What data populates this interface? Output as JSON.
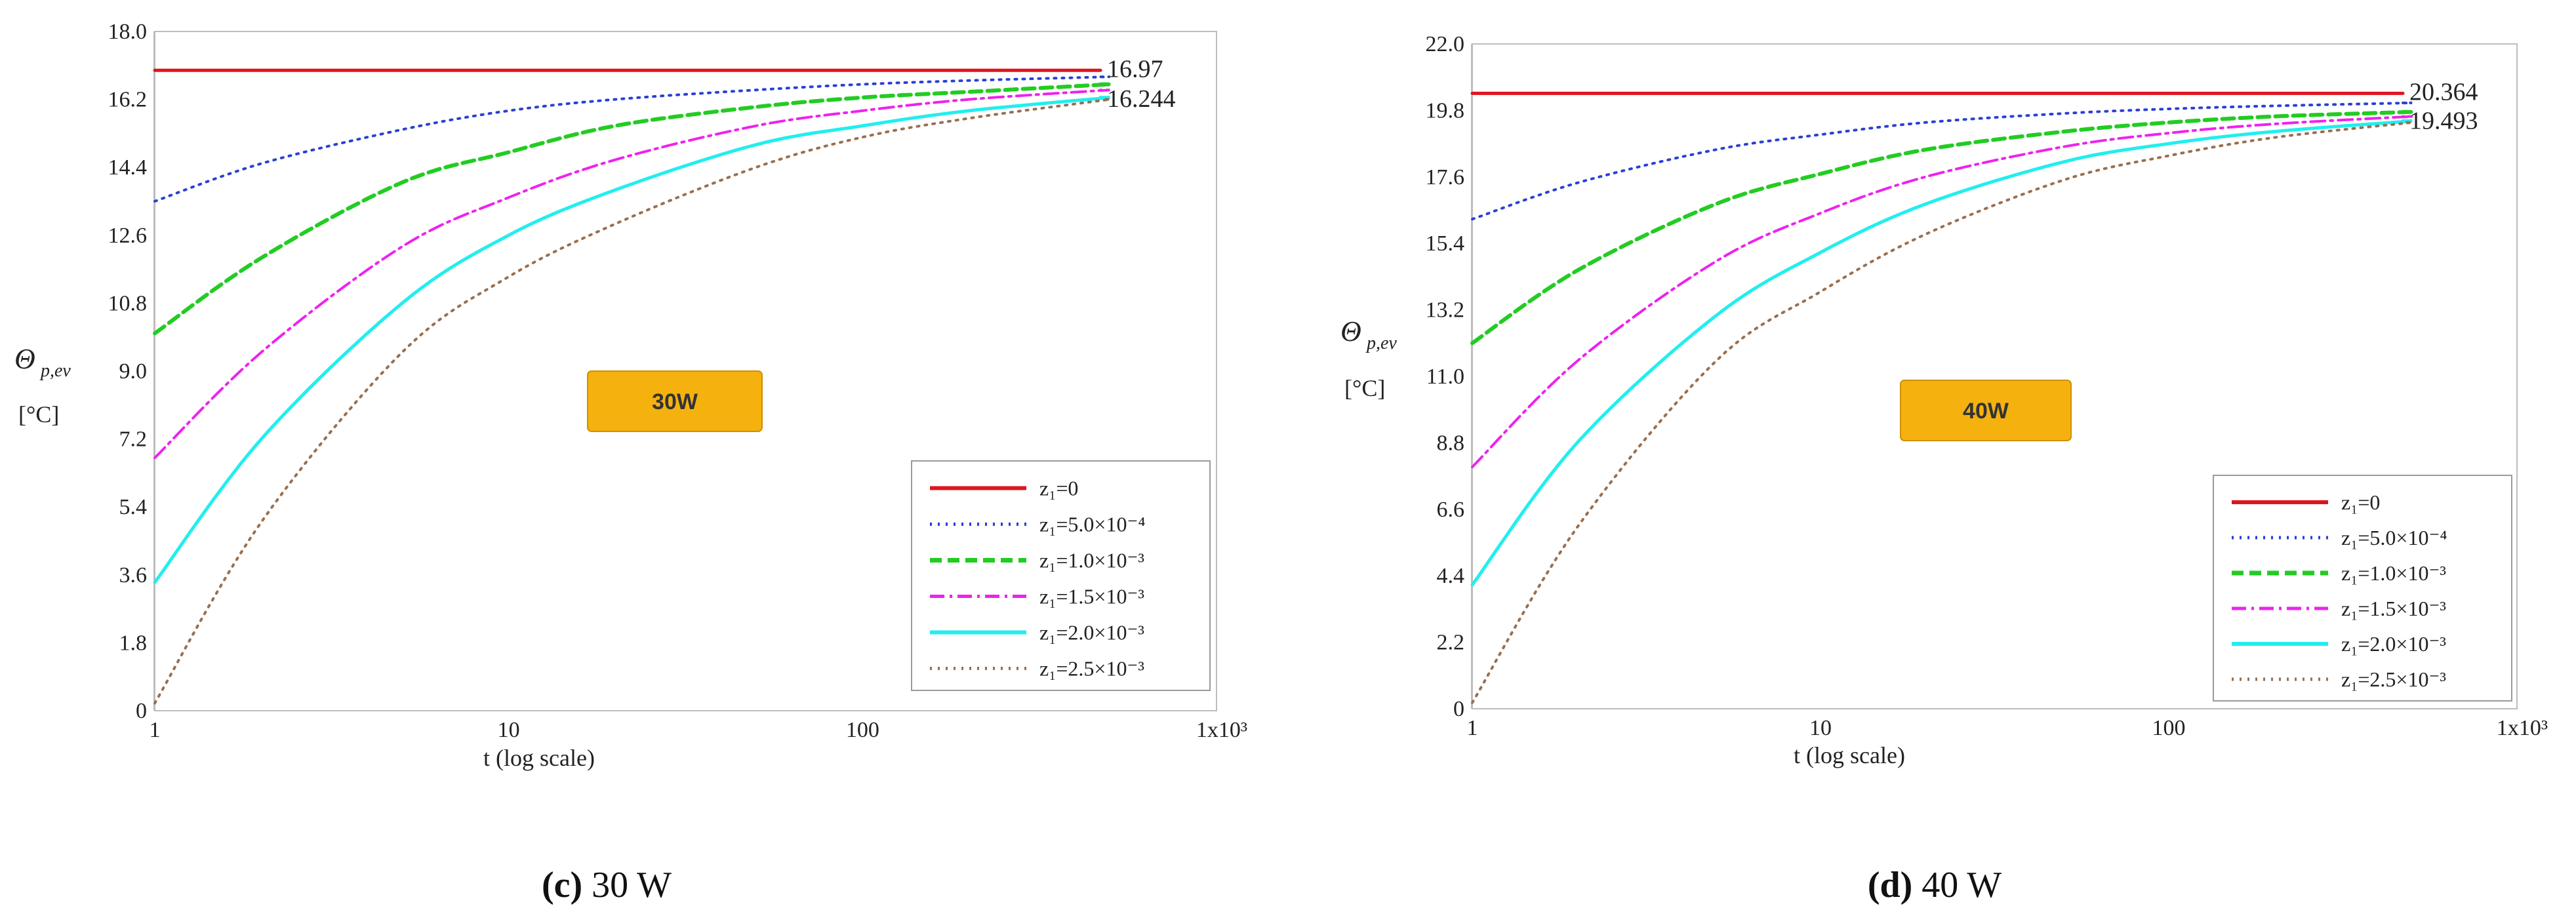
{
  "chart_data": [
    {
      "type": "line",
      "panel": "c",
      "caption_letter": "(c)",
      "caption_text": " 30 W",
      "badge": "30W",
      "xlabel": "t (log scale)",
      "ylabel_main": "Θ",
      "ylabel_sub": "p,ev",
      "ylabel_unit": "[°C]",
      "x_scale": "log",
      "xlim": [
        1,
        1000
      ],
      "x_ticks": [
        "1",
        "10",
        "100",
        "1x10³"
      ],
      "ylim": [
        0,
        18.0
      ],
      "y_ticks": [
        "0",
        "1.8",
        "3.6",
        "5.4",
        "7.2",
        "9.0",
        "10.8",
        "12.6",
        "14.4",
        "16.2",
        "18.0"
      ],
      "grid": true,
      "legend_position": "bottom-right",
      "end_annotations": [
        {
          "text": "16.97",
          "value": 16.97
        },
        {
          "text": "16.244",
          "value": 16.244
        }
      ],
      "reference_lines": [
        16.97,
        16.244
      ],
      "series": [
        {
          "name": "z₁=0",
          "x": [
            1,
            500
          ],
          "values": [
            16.97,
            16.97
          ]
        },
        {
          "name": "z₁=5.0×10⁻⁴",
          "x": [
            1,
            2,
            5,
            10,
            20,
            50,
            100,
            200,
            500
          ],
          "values": [
            13.5,
            14.5,
            15.4,
            15.9,
            16.2,
            16.45,
            16.6,
            16.7,
            16.8
          ]
        },
        {
          "name": "z₁=1.0×10⁻³",
          "x": [
            1,
            2,
            5,
            10,
            20,
            50,
            100,
            200,
            500
          ],
          "values": [
            10.0,
            12.0,
            14.0,
            14.8,
            15.5,
            16.0,
            16.25,
            16.4,
            16.6
          ]
        },
        {
          "name": "z₁=1.5×10⁻³",
          "x": [
            1,
            2,
            5,
            10,
            20,
            50,
            100,
            200,
            500
          ],
          "values": [
            6.7,
            9.5,
            12.3,
            13.6,
            14.6,
            15.5,
            15.9,
            16.2,
            16.45
          ]
        },
        {
          "name": "z₁=2.0×10⁻³",
          "x": [
            1,
            2,
            5,
            10,
            20,
            50,
            100,
            200,
            500
          ],
          "values": [
            3.4,
            7.2,
            10.8,
            12.6,
            13.8,
            15.0,
            15.5,
            15.9,
            16.25
          ]
        },
        {
          "name": "z₁=2.5×10⁻³",
          "x": [
            1,
            2,
            5,
            10,
            20,
            50,
            100,
            200,
            500
          ],
          "values": [
            0.2,
            5.0,
            9.5,
            11.5,
            12.9,
            14.4,
            15.2,
            15.7,
            16.2
          ]
        }
      ]
    },
    {
      "type": "line",
      "panel": "d",
      "caption_letter": "(d)",
      "caption_text": " 40 W",
      "badge": "40W",
      "xlabel": "t (log scale)",
      "ylabel_main": "Θ",
      "ylabel_sub": "p,ev",
      "ylabel_unit": "[°C]",
      "x_scale": "log",
      "xlim": [
        1,
        1000
      ],
      "x_ticks": [
        "1",
        "10",
        "100",
        "1x10³"
      ],
      "ylim": [
        0,
        22.0
      ],
      "y_ticks": [
        "0",
        "2.2",
        "4.4",
        "6.6",
        "8.8",
        "11.0",
        "13.2",
        "15.4",
        "17.6",
        "19.8",
        "22.0"
      ],
      "grid": true,
      "legend_position": "bottom-right",
      "end_annotations": [
        {
          "text": "20.364",
          "value": 20.364
        },
        {
          "text": "19.493",
          "value": 19.493
        }
      ],
      "reference_lines": [
        20.364,
        19.493
      ],
      "series": [
        {
          "name": "z₁=0",
          "x": [
            1,
            500
          ],
          "values": [
            20.364,
            20.364
          ]
        },
        {
          "name": "z₁=5.0×10⁻⁴",
          "x": [
            1,
            2,
            5,
            10,
            20,
            50,
            100,
            200,
            500
          ],
          "values": [
            16.2,
            17.4,
            18.5,
            19.0,
            19.4,
            19.7,
            19.85,
            19.95,
            20.05
          ]
        },
        {
          "name": "z₁=1.0×10⁻³",
          "x": [
            1,
            2,
            5,
            10,
            20,
            50,
            100,
            200,
            500
          ],
          "values": [
            12.1,
            14.5,
            16.7,
            17.7,
            18.5,
            19.1,
            19.4,
            19.6,
            19.75
          ]
        },
        {
          "name": "z₁=1.5×10⁻³",
          "x": [
            1,
            2,
            5,
            10,
            20,
            50,
            100,
            200,
            500
          ],
          "values": [
            8.0,
            11.5,
            14.8,
            16.4,
            17.6,
            18.6,
            19.05,
            19.35,
            19.6
          ]
        },
        {
          "name": "z₁=2.0×10⁻³",
          "x": [
            1,
            2,
            5,
            10,
            20,
            50,
            100,
            200,
            500
          ],
          "values": [
            4.1,
            8.8,
            13.0,
            15.1,
            16.7,
            18.1,
            18.7,
            19.1,
            19.45
          ]
        },
        {
          "name": "z₁=2.5×10⁻³",
          "x": [
            1,
            2,
            5,
            10,
            20,
            50,
            100,
            200,
            500
          ],
          "values": [
            0.2,
            6.0,
            11.5,
            13.8,
            15.7,
            17.5,
            18.3,
            18.9,
            19.4
          ]
        }
      ]
    }
  ],
  "styles": {
    "series_colors": [
      "#e0141e",
      "#2a3fd6",
      "#22cc22",
      "#ee22ee",
      "#22eeee",
      "#9a6f4f"
    ],
    "series_dash": [
      "",
      "3 9",
      "18 9",
      "22 8 4 8",
      "",
      "3 9"
    ],
    "series_width": [
      5,
      4,
      6,
      4,
      5,
      4
    ],
    "minor_grid_color": "#7ee07e",
    "major_grid_color": "#777777",
    "badge_color": "#f5b20f",
    "ref_line_color": "#b0b0b0"
  }
}
